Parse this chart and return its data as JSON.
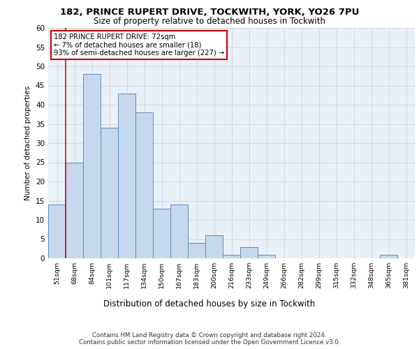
{
  "title1": "182, PRINCE RUPERT DRIVE, TOCKWITH, YORK, YO26 7PU",
  "title2": "Size of property relative to detached houses in Tockwith",
  "xlabel": "Distribution of detached houses by size in Tockwith",
  "ylabel": "Number of detached properties",
  "bar_labels": [
    "51sqm",
    "68sqm",
    "84sqm",
    "101sqm",
    "117sqm",
    "134sqm",
    "150sqm",
    "167sqm",
    "183sqm",
    "200sqm",
    "216sqm",
    "233sqm",
    "249sqm",
    "266sqm",
    "282sqm",
    "299sqm",
    "315sqm",
    "332sqm",
    "348sqm",
    "365sqm",
    "381sqm"
  ],
  "bar_values": [
    14,
    25,
    48,
    34,
    43,
    38,
    13,
    14,
    4,
    6,
    1,
    3,
    1,
    0,
    0,
    0,
    0,
    0,
    0,
    1,
    0
  ],
  "bar_color": "#c5d8ed",
  "bar_edge_color": "#5a8fc2",
  "grid_color": "#d0d8e0",
  "background_color": "#eaf0f8",
  "vline_color": "#cc0000",
  "annotation_lines": [
    "182 PRINCE RUPERT DRIVE: 72sqm",
    "← 7% of detached houses are smaller (18)",
    "93% of semi-detached houses are larger (227) →"
  ],
  "annotation_box_color": "#ffffff",
  "annotation_box_edge": "#cc0000",
  "ylim": [
    0,
    60
  ],
  "yticks": [
    0,
    5,
    10,
    15,
    20,
    25,
    30,
    35,
    40,
    45,
    50,
    55,
    60
  ],
  "footer1": "Contains HM Land Registry data © Crown copyright and database right 2024.",
  "footer2": "Contains public sector information licensed under the Open Government Licence v3.0."
}
